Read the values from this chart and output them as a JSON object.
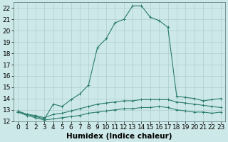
{
  "xlabel": "Humidex (Indice chaleur)",
  "ylabel": "",
  "background_color": "#cde8e8",
  "grid_color": "#b0cece",
  "line_color": "#2a7d6b",
  "xlim": [
    -0.5,
    23.5
  ],
  "ylim": [
    12,
    22.5
  ],
  "yticks": [
    12,
    13,
    14,
    15,
    16,
    17,
    18,
    19,
    20,
    21,
    22
  ],
  "xticks": [
    0,
    1,
    2,
    3,
    4,
    5,
    6,
    7,
    8,
    9,
    10,
    11,
    12,
    13,
    14,
    15,
    16,
    17,
    18,
    19,
    20,
    21,
    22,
    23
  ],
  "series": [
    {
      "x": [
        0,
        1,
        2,
        3,
        4,
        5,
        6,
        7,
        8,
        9,
        10,
        11,
        12,
        13,
        14,
        15,
        16,
        17,
        18,
        19,
        20,
        21,
        22,
        23
      ],
      "y": [
        12.8,
        12.6,
        12.4,
        12.2,
        13.5,
        13.3,
        13.9,
        14.4,
        15.2,
        18.5,
        19.3,
        20.7,
        21.0,
        22.2,
        22.2,
        21.2,
        20.9,
        20.3,
        14.2,
        14.1,
        14.0,
        13.8,
        13.9,
        14.0
      ]
    },
    {
      "x": [
        0,
        1,
        2,
        3,
        4,
        5,
        6,
        7,
        8,
        9,
        10,
        11,
        12,
        13,
        14,
        15,
        16,
        17,
        18,
        19,
        20,
        21,
        22,
        23
      ],
      "y": [
        12.9,
        12.6,
        12.5,
        12.3,
        12.6,
        12.7,
        12.9,
        13.1,
        13.3,
        13.5,
        13.6,
        13.7,
        13.8,
        13.8,
        13.9,
        13.9,
        13.9,
        13.9,
        13.7,
        13.6,
        13.5,
        13.4,
        13.3,
        13.2
      ]
    },
    {
      "x": [
        0,
        1,
        2,
        3,
        4,
        5,
        6,
        7,
        8,
        9,
        10,
        11,
        12,
        13,
        14,
        15,
        16,
        17,
        18,
        19,
        20,
        21,
        22,
        23
      ],
      "y": [
        12.8,
        12.5,
        12.3,
        12.1,
        12.2,
        12.3,
        12.4,
        12.5,
        12.7,
        12.8,
        12.9,
        13.0,
        13.1,
        13.1,
        13.2,
        13.2,
        13.3,
        13.2,
        13.0,
        12.9,
        12.8,
        12.8,
        12.7,
        12.8
      ]
    }
  ],
  "tick_fontsize": 6.5,
  "axis_fontsize": 7.5
}
